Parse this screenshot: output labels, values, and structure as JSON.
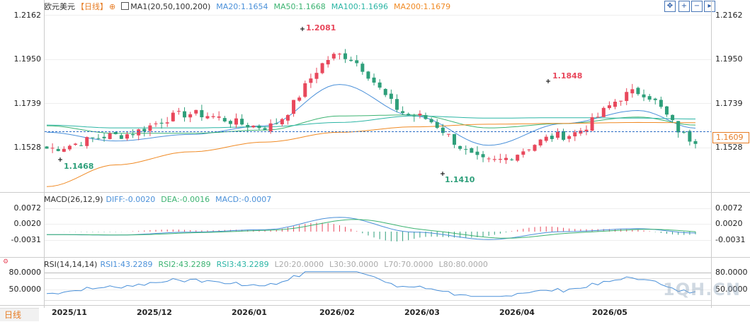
{
  "header": {
    "symbol": "欧元美元",
    "period_label": "【日线】",
    "ma_label": "MA1(20,50,100,200)",
    "ma20": "MA20:1.1654",
    "ma50": "MA50:1.1668",
    "ma100": "MA100:1.1696",
    "ma200": "MA200:1.1679"
  },
  "toolbar": {
    "icons": [
      "move-icon",
      "zoom-in-icon",
      "zoom-out-icon",
      "scroll-right-icon"
    ]
  },
  "price_axis": {
    "ticks": [
      "1.2162",
      "1.1950",
      "1.1739",
      "1.1528"
    ],
    "current_price": "1.1609"
  },
  "annotations": {
    "high": "1.2081",
    "low_left": "1.1468",
    "low_mid": "1.1410",
    "high_right": "1.1848"
  },
  "macd": {
    "title": "MACD(26,12,9)",
    "diff": "DIFF:-0.0020",
    "dea": "DEA:-0.0016",
    "macd": "MACD:-0.0007",
    "ticks": [
      "0.0072",
      "0.0020",
      "-0.0031"
    ]
  },
  "rsi": {
    "title": "RSI(14,14,14)",
    "rsi1": "RSI1:43.2289",
    "rsi2": "RSI2:43.2289",
    "rsi3": "RSI3:43.2289",
    "l20": "L20:20.0000",
    "l30": "L30:30.0000",
    "l70": "L70:70.0000",
    "l80": "L80:80.0000",
    "ticks": [
      "80.0000",
      "50.0000"
    ]
  },
  "x_axis": [
    "2025/11",
    "2025/12",
    "2026/01",
    "2026/02",
    "2026/03",
    "2026/04",
    "2026/05"
  ],
  "period_tab": "日线",
  "watermark": "1QH.CN",
  "colors": {
    "up": "#e8485c",
    "down": "#2e9f7a",
    "ma20": "#4a90d9",
    "ma50": "#3cb371",
    "ma100": "#2bb5a5",
    "ma200": "#f08a24",
    "diff": "#4a90d9",
    "dea": "#3cb371",
    "rsi": "#4a90d9"
  },
  "chart_data": {
    "type": "candlestick",
    "ylim": [
      1.136,
      1.2175
    ],
    "anchors_x_index": [
      0,
      12,
      25,
      38,
      51,
      64,
      77,
      90,
      103,
      113
    ],
    "anchors_close": [
      1.156,
      1.162,
      1.172,
      1.166,
      1.199,
      1.171,
      1.15,
      1.162,
      1.182,
      1.16
    ],
    "ma20_anchors": [
      1.1635,
      1.1595,
      1.1625,
      1.1665,
      1.1855,
      1.171,
      1.1575,
      1.1675,
      1.1735,
      1.1654
    ],
    "ma50_anchors": [
      1.1665,
      1.163,
      1.163,
      1.1645,
      1.171,
      1.1715,
      1.1655,
      1.1675,
      1.1705,
      1.1668
    ],
    "ma100_anchors": [
      1.1668,
      1.1655,
      1.1655,
      1.166,
      1.168,
      1.171,
      1.17,
      1.1702,
      1.17,
      1.1696
    ],
    "ma200_anchors": [
      1.1385,
      1.1485,
      1.1545,
      1.159,
      1.1635,
      1.166,
      1.1672,
      1.1676,
      1.168,
      1.1679
    ],
    "candle_count": 114
  }
}
